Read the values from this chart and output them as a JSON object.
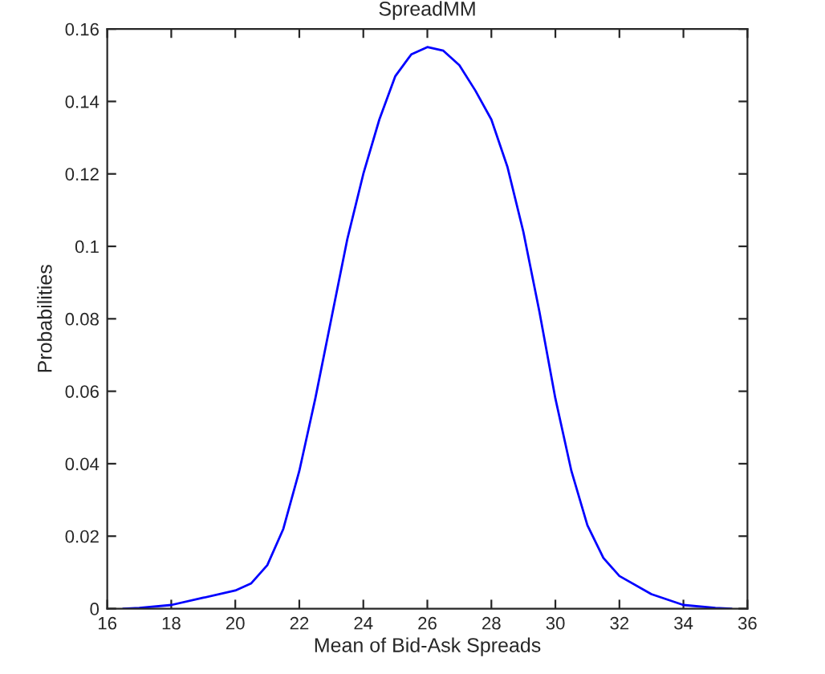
{
  "chart_data": {
    "type": "line",
    "title": "SpreadMM",
    "xlabel": "Mean of Bid-Ask Spreads",
    "ylabel": "Probabilities",
    "x": [
      16.5,
      17,
      18,
      19,
      20,
      20.5,
      21,
      21.5,
      22,
      22.5,
      23,
      23.5,
      24,
      24.5,
      25,
      25.5,
      26,
      26.5,
      27,
      27.5,
      28,
      28.5,
      29,
      29.5,
      30,
      30.5,
      31,
      31.5,
      32,
      33,
      34,
      35,
      35.5
    ],
    "series": [
      {
        "color": "#0000ff",
        "values": [
          0,
          0.0002,
          0.001,
          0.003,
          0.005,
          0.007,
          0.012,
          0.022,
          0.038,
          0.058,
          0.08,
          0.102,
          0.12,
          0.135,
          0.147,
          0.153,
          0.155,
          0.154,
          0.15,
          0.143,
          0.135,
          0.122,
          0.104,
          0.082,
          0.058,
          0.038,
          0.023,
          0.014,
          0.009,
          0.004,
          0.001,
          0.0002,
          0
        ]
      }
    ],
    "xlim": [
      16,
      36
    ],
    "xticks": [
      16,
      18,
      20,
      22,
      24,
      26,
      28,
      30,
      32,
      34,
      36
    ],
    "ylim": [
      0,
      0.16
    ],
    "yticks": [
      0,
      0.02,
      0.04,
      0.06,
      0.08,
      0.1,
      0.12,
      0.14,
      0.16
    ],
    "grid": false,
    "legend": false,
    "marker": "none",
    "line_style": "solid"
  }
}
